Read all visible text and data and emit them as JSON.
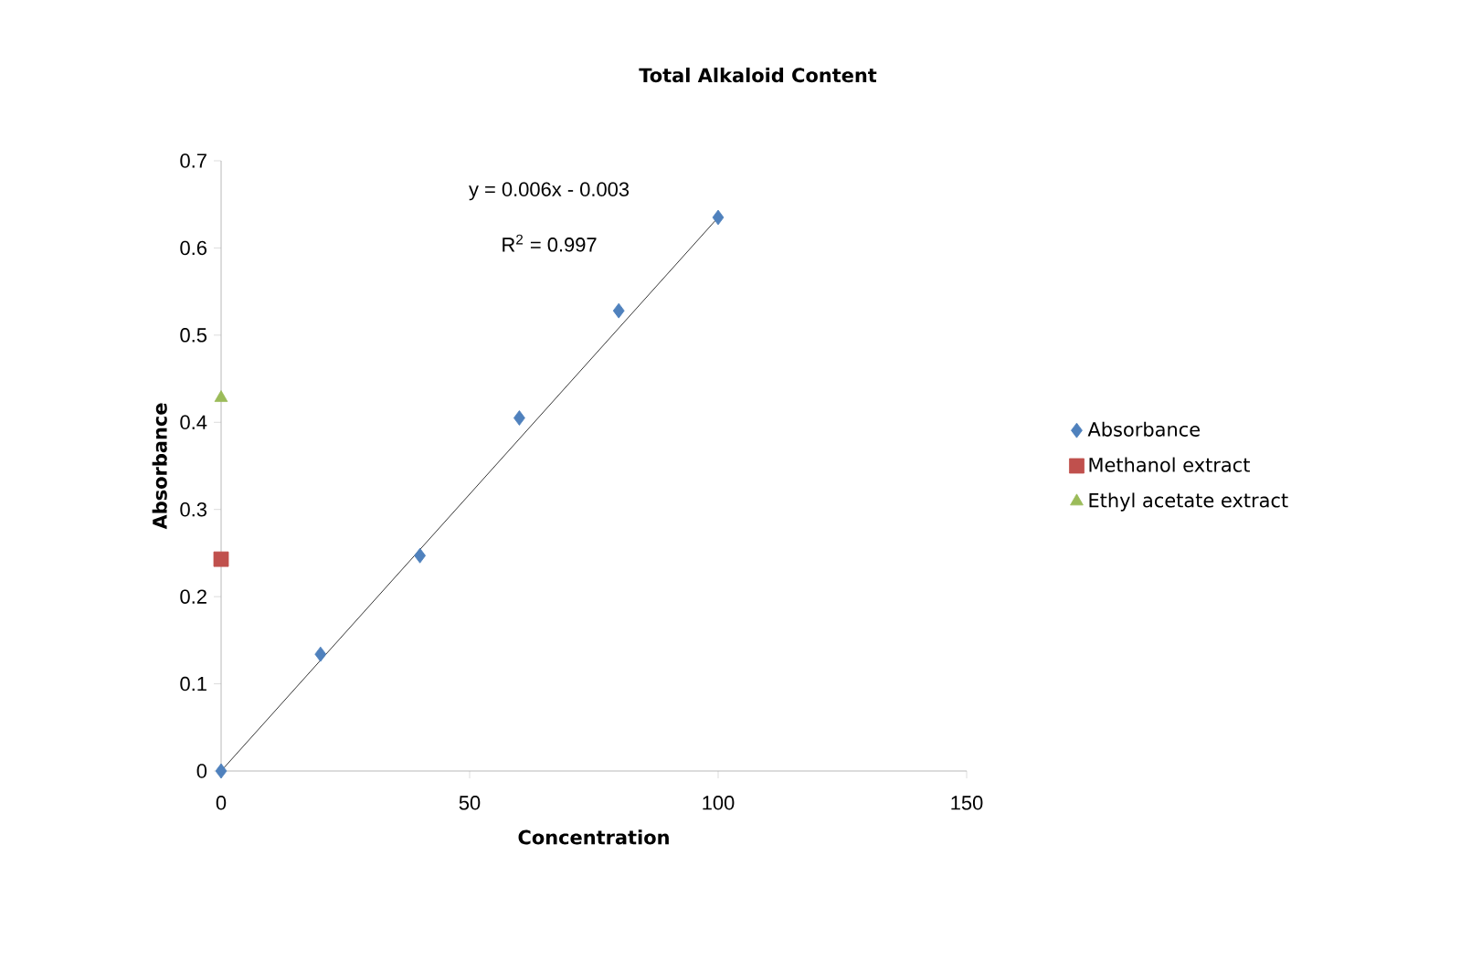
{
  "chart_data": {
    "type": "scatter",
    "title": "Total Alkaloid Content",
    "xlabel": "Concentration",
    "ylabel": "Absorbance",
    "xlim": [
      0,
      150
    ],
    "xticks": [
      0,
      50,
      100,
      150
    ],
    "ylim": [
      0,
      0.7
    ],
    "yticks": [
      0,
      0.1,
      0.2,
      0.3,
      0.4,
      0.5,
      0.6,
      0.7
    ],
    "grid": false,
    "legend": "right",
    "annotations": [
      "y = 0.006x - 0.003",
      "R$^{2}$ = 0.997"
    ],
    "series": [
      {
        "name": "Absorbance",
        "color": "#4f81bd",
        "marker": "diamond",
        "x": [
          0,
          20,
          40,
          60,
          80,
          100
        ],
        "values": [
          0,
          0.134,
          0.247,
          0.405,
          0.528,
          0.635
        ]
      },
      {
        "name": "Methanol extract",
        "color": "#c0504d",
        "marker": "square",
        "x": [
          0
        ],
        "values": [
          0.243
        ]
      },
      {
        "name": "Ethyl acetate extract",
        "color": "#9bbb59",
        "marker": "triangle",
        "x": [
          0
        ],
        "values": [
          0.428
        ]
      },
      {
        "type": "line",
        "color": "#000000",
        "marker": "none",
        "x": [
          0,
          100
        ],
        "values": [
          0,
          0.635
        ]
      }
    ]
  }
}
